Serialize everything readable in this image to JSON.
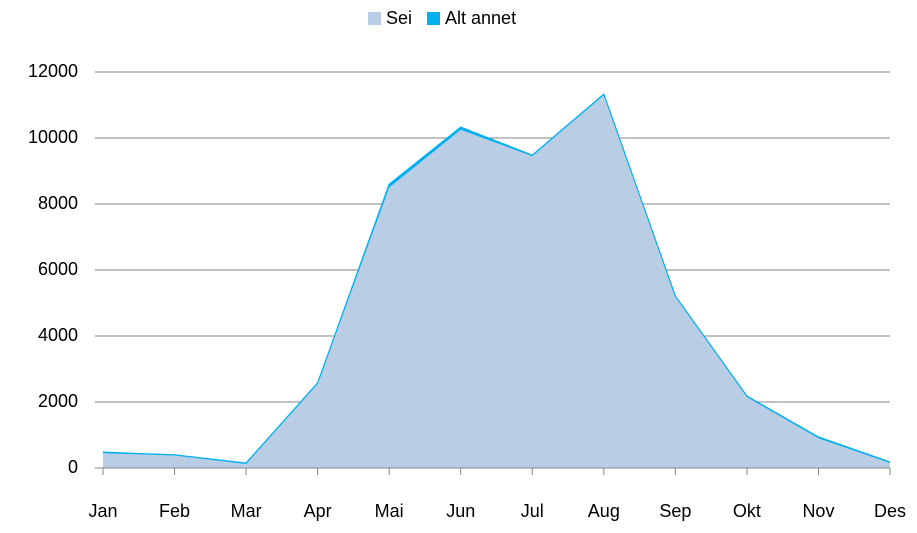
{
  "chart_data": {
    "type": "stacked_area",
    "categories": [
      "Jan",
      "Feb",
      "Mar",
      "Apr",
      "Mai",
      "Jun",
      "Jul",
      "Aug",
      "Sep",
      "Okt",
      "Nov",
      "Des"
    ],
    "series": [
      {
        "name": "Sei",
        "color": "#b9cde5",
        "values": [
          450,
          380,
          120,
          2550,
          8500,
          10250,
          9450,
          11300,
          5180,
          2150,
          900,
          150
        ]
      },
      {
        "name": "Alt annet",
        "color": "#00b0f0",
        "values": [
          30,
          20,
          30,
          30,
          100,
          80,
          30,
          30,
          30,
          30,
          40,
          30
        ]
      }
    ],
    "ylim": [
      0,
      12000
    ],
    "yticks": [
      0,
      2000,
      4000,
      6000,
      8000,
      10000,
      12000
    ],
    "grid": true,
    "legend": "top"
  }
}
